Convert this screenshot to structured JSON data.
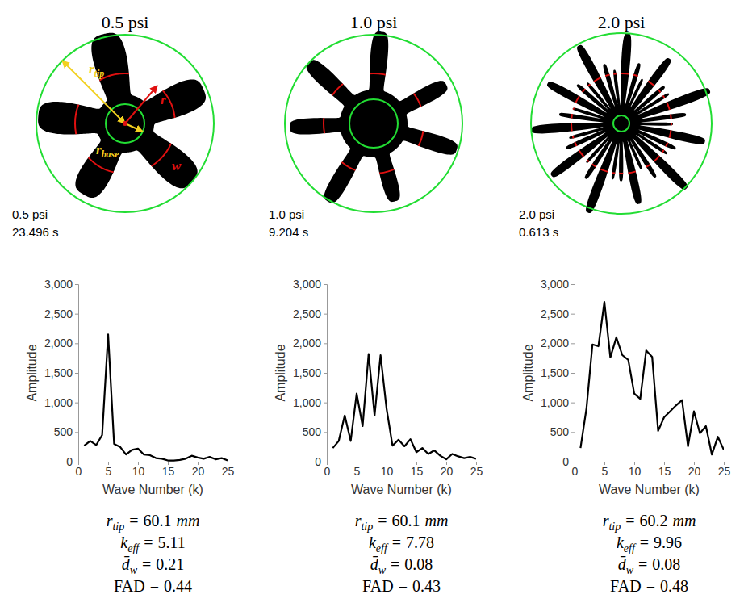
{
  "chart_data": [
    {
      "type": "line",
      "title": "0.5 psi",
      "x_label": "Wave Number (k)",
      "y_label": "Amplitude",
      "color": "#000000",
      "x": [
        1,
        2,
        3,
        4,
        5,
        6,
        7,
        8,
        9,
        10,
        11,
        12,
        13,
        14,
        15,
        16,
        17,
        18,
        19,
        20,
        21,
        22,
        23,
        24,
        25
      ],
      "values": [
        270,
        350,
        280,
        450,
        2150,
        300,
        250,
        120,
        200,
        220,
        120,
        110,
        60,
        50,
        20,
        20,
        30,
        50,
        100,
        70,
        50,
        80,
        40,
        60,
        20
      ],
      "xlim": [
        0,
        25
      ],
      "xticks": [
        0,
        5,
        10,
        15,
        20,
        25
      ],
      "ylim": [
        0,
        3000
      ],
      "yticks": [
        0,
        500,
        {
          "value": 1000,
          "label": "1,000"
        },
        {
          "value": 1500,
          "label": "1,500"
        },
        {
          "value": 2000,
          "label": "2,000"
        },
        {
          "value": 2500,
          "label": "2,500"
        },
        {
          "value": 3000,
          "label": "3,000"
        }
      ],
      "grid": false
    },
    {
      "type": "line",
      "title": "1.0 psi",
      "x_label": "Wave Number (k)",
      "y_label": "Amplitude",
      "color": "#000000",
      "x": [
        1,
        2,
        3,
        4,
        5,
        6,
        7,
        8,
        9,
        10,
        11,
        12,
        13,
        14,
        15,
        16,
        17,
        18,
        19,
        20,
        21,
        22,
        23,
        24,
        25
      ],
      "values": [
        230,
        350,
        780,
        350,
        1150,
        600,
        1820,
        780,
        1800,
        900,
        270,
        370,
        260,
        380,
        160,
        230,
        130,
        190,
        100,
        40,
        130,
        90,
        60,
        80,
        50
      ],
      "xlim": [
        0,
        25
      ],
      "xticks": [
        0,
        5,
        10,
        15,
        20,
        25
      ],
      "ylim": [
        0,
        3000
      ],
      "yticks": [
        0,
        500,
        {
          "value": 1000,
          "label": "1,000"
        },
        {
          "value": 1500,
          "label": "1,500"
        },
        {
          "value": 2000,
          "label": "2,000"
        },
        {
          "value": 2500,
          "label": "2,500"
        },
        {
          "value": 3000,
          "label": "3,000"
        }
      ],
      "grid": false
    },
    {
      "type": "line",
      "title": "2.0 psi",
      "x_label": "Wave Number (k)",
      "y_label": "Amplitude",
      "color": "#000000",
      "x": [
        1,
        2,
        3,
        4,
        5,
        6,
        7,
        8,
        9,
        10,
        11,
        12,
        13,
        14,
        15,
        16,
        17,
        18,
        19,
        20,
        21,
        22,
        23,
        24,
        25
      ],
      "values": [
        230,
        900,
        1980,
        1950,
        2700,
        1760,
        2100,
        1800,
        1720,
        1150,
        1060,
        1880,
        1770,
        520,
        750,
        850,
        950,
        1040,
        260,
        850,
        480,
        600,
        120,
        420,
        200
      ],
      "xlim": [
        0,
        25
      ],
      "xticks": [
        0,
        5,
        10,
        15,
        20,
        25
      ],
      "ylim": [
        0,
        3000
      ],
      "yticks": [
        0,
        500,
        {
          "value": 1000,
          "label": "1,000"
        },
        {
          "value": 1500,
          "label": "1,500"
        },
        {
          "value": 2000,
          "label": "2,000"
        },
        {
          "value": 2500,
          "label": "2,500"
        },
        {
          "value": 3000,
          "label": "3,000"
        }
      ],
      "grid": false
    }
  ],
  "panels": [
    {
      "caption": [
        "0.5 psi",
        "23.496 s"
      ],
      "annotations": [
        {
          "symbol": "r",
          "sub": "tip"
        },
        {
          "symbol": "r"
        },
        {
          "symbol": "r",
          "sub": "base"
        },
        {
          "symbol": "w"
        }
      ],
      "metrics": [
        {
          "symbol": "r",
          "sub": "tip",
          "sign": "=",
          "value": 60.1,
          "unit": "mm"
        },
        {
          "symbol": "k",
          "sub": "eff",
          "sign": "=",
          "value": 5.11
        },
        {
          "symbol": "d̄",
          "sub": "w",
          "sign": "=",
          "value": 0.21
        },
        {
          "symbol": "FAD",
          "sign": "=",
          "value": 0.44
        }
      ]
    },
    {
      "caption": [
        "1.0 psi",
        "9.204 s"
      ],
      "metrics": [
        {
          "symbol": "r",
          "sub": "tip",
          "sign": "=",
          "value": 60.1,
          "unit": "mm"
        },
        {
          "symbol": "k",
          "sub": "eff",
          "sign": "=",
          "value": 7.78
        },
        {
          "symbol": "d̄",
          "sub": "w",
          "sign": "=",
          "value": 0.08
        },
        {
          "symbol": "FAD",
          "sign": "=",
          "value": 0.43
        }
      ]
    },
    {
      "caption": [
        "2.0 psi",
        "0.613 s"
      ],
      "metrics": [
        {
          "symbol": "r",
          "sub": "tip",
          "sign": "=",
          "value": 60.2,
          "unit": "mm"
        },
        {
          "symbol": "k",
          "sub": "eff",
          "sign": "=",
          "value": 9.96
        },
        {
          "symbol": "d̄",
          "sub": "w",
          "sign": "=",
          "value": 0.08
        },
        {
          "symbol": "FAD",
          "sign": "=",
          "value": 0.48
        }
      ]
    }
  ]
}
